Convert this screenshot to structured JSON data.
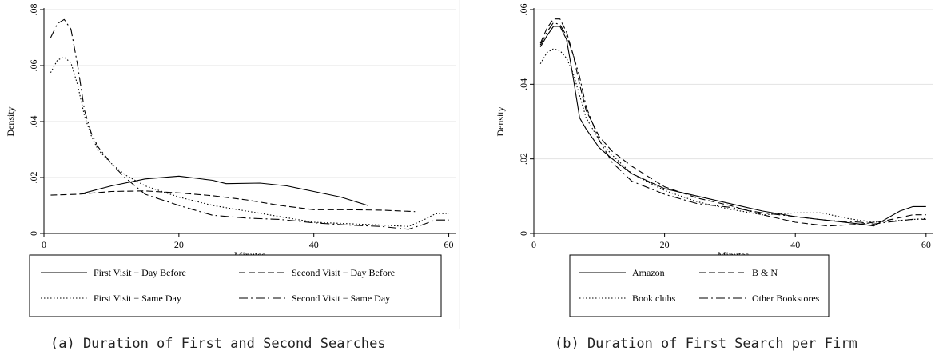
{
  "chart_data": [
    {
      "type": "line",
      "title": "",
      "xlabel": "Minutes",
      "ylabel": "Density",
      "xlim": [
        0,
        61
      ],
      "ylim": [
        0,
        0.08
      ],
      "xticks": [
        0,
        20,
        40,
        60
      ],
      "yticks": [
        0,
        0.02,
        0.04,
        0.06,
        0.08
      ],
      "xtick_labels": [
        "0",
        "20",
        "40",
        "60"
      ],
      "ytick_labels": [
        "0",
        ".02",
        ".04",
        ".06",
        ".08"
      ],
      "grid": true,
      "legend_placement": "bottom",
      "series": [
        {
          "name": "First Visit − Day Before",
          "dash": "solid",
          "points": [
            [
              6,
              0.0145
            ],
            [
              10,
              0.017
            ],
            [
              15,
              0.0195
            ],
            [
              20,
              0.0205
            ],
            [
              25,
              0.019
            ],
            [
              27,
              0.0178
            ],
            [
              32,
              0.018
            ],
            [
              36,
              0.017
            ],
            [
              40,
              0.015
            ],
            [
              44,
              0.013
            ],
            [
              48,
              0.01
            ]
          ]
        },
        {
          "name": "Second Visit − Day Before",
          "dash": "dashed",
          "points": [
            [
              1,
              0.0137
            ],
            [
              5,
              0.014
            ],
            [
              10,
              0.015
            ],
            [
              15,
              0.0152
            ],
            [
              20,
              0.0145
            ],
            [
              25,
              0.0135
            ],
            [
              30,
              0.012
            ],
            [
              35,
              0.01
            ],
            [
              40,
              0.0085
            ],
            [
              45,
              0.0085
            ],
            [
              50,
              0.0083
            ],
            [
              55,
              0.0078
            ]
          ]
        },
        {
          "name": "First Visit − Same Day",
          "dash": "dotted",
          "points": [
            [
              1,
              0.0575
            ],
            [
              2,
              0.062
            ],
            [
              3,
              0.063
            ],
            [
              4,
              0.061
            ],
            [
              5,
              0.053
            ],
            [
              6,
              0.042
            ],
            [
              7,
              0.035
            ],
            [
              8,
              0.03
            ],
            [
              10,
              0.025
            ],
            [
              12,
              0.021
            ],
            [
              15,
              0.017
            ],
            [
              20,
              0.013
            ],
            [
              25,
              0.01
            ],
            [
              30,
              0.008
            ],
            [
              35,
              0.006
            ],
            [
              40,
              0.004
            ],
            [
              45,
              0.0035
            ],
            [
              50,
              0.003
            ],
            [
              54,
              0.0025
            ],
            [
              56,
              0.0045
            ],
            [
              58,
              0.007
            ],
            [
              60,
              0.0072
            ]
          ]
        },
        {
          "name": "Second Visit − Same Day",
          "dash": "dashdot",
          "points": [
            [
              1,
              0.07
            ],
            [
              2,
              0.075
            ],
            [
              3,
              0.0765
            ],
            [
              4,
              0.073
            ],
            [
              5,
              0.06
            ],
            [
              6,
              0.044
            ],
            [
              7,
              0.036
            ],
            [
              8,
              0.031
            ],
            [
              10,
              0.025
            ],
            [
              12,
              0.02
            ],
            [
              15,
              0.014
            ],
            [
              20,
              0.01
            ],
            [
              25,
              0.0065
            ],
            [
              30,
              0.0055
            ],
            [
              35,
              0.005
            ],
            [
              40,
              0.0038
            ],
            [
              45,
              0.003
            ],
            [
              50,
              0.0025
            ],
            [
              54,
              0.0015
            ],
            [
              56,
              0.003
            ],
            [
              58,
              0.0048
            ],
            [
              60,
              0.0048
            ]
          ]
        }
      ]
    },
    {
      "type": "line",
      "title": "",
      "xlabel": "Minutes",
      "ylabel": "Density",
      "xlim": [
        0,
        61
      ],
      "ylim": [
        0,
        0.06
      ],
      "xticks": [
        0,
        20,
        40,
        60
      ],
      "yticks": [
        0,
        0.02,
        0.04,
        0.06
      ],
      "xtick_labels": [
        "0",
        "20",
        "40",
        "60"
      ],
      "ytick_labels": [
        "0",
        ".02",
        ".04",
        ".06"
      ],
      "grid": true,
      "legend_placement": "bottom",
      "series": [
        {
          "name": "Amazon",
          "dash": "solid",
          "points": [
            [
              1,
              0.05
            ],
            [
              2,
              0.053
            ],
            [
              3,
              0.0555
            ],
            [
              4,
              0.0555
            ],
            [
              5,
              0.052
            ],
            [
              6,
              0.042
            ],
            [
              7,
              0.031
            ],
            [
              8,
              0.028
            ],
            [
              10,
              0.023
            ],
            [
              12,
              0.02
            ],
            [
              15,
              0.016
            ],
            [
              20,
              0.012
            ],
            [
              25,
              0.01
            ],
            [
              30,
              0.008
            ],
            [
              35,
              0.006
            ],
            [
              40,
              0.0045
            ],
            [
              45,
              0.0035
            ],
            [
              50,
              0.0025
            ],
            [
              52,
              0.002
            ],
            [
              54,
              0.004
            ],
            [
              56,
              0.006
            ],
            [
              58,
              0.0072
            ],
            [
              60,
              0.0072
            ]
          ]
        },
        {
          "name": "B & N",
          "dash": "dashed",
          "points": [
            [
              1,
              0.051
            ],
            [
              2,
              0.055
            ],
            [
              3,
              0.0575
            ],
            [
              4,
              0.0575
            ],
            [
              5,
              0.054
            ],
            [
              6,
              0.048
            ],
            [
              7,
              0.04
            ],
            [
              8,
              0.033
            ],
            [
              10,
              0.026
            ],
            [
              12,
              0.022
            ],
            [
              15,
              0.018
            ],
            [
              20,
              0.0125
            ],
            [
              25,
              0.0095
            ],
            [
              30,
              0.0075
            ],
            [
              35,
              0.005
            ],
            [
              40,
              0.003
            ],
            [
              45,
              0.002
            ],
            [
              50,
              0.0025
            ],
            [
              54,
              0.0035
            ],
            [
              58,
              0.005
            ],
            [
              60,
              0.005
            ]
          ]
        },
        {
          "name": "Book clubs",
          "dash": "dotted",
          "points": [
            [
              1,
              0.0455
            ],
            [
              2,
              0.0485
            ],
            [
              3,
              0.0495
            ],
            [
              4,
              0.049
            ],
            [
              5,
              0.047
            ],
            [
              6,
              0.043
            ],
            [
              7,
              0.037
            ],
            [
              8,
              0.031
            ],
            [
              10,
              0.025
            ],
            [
              12,
              0.021
            ],
            [
              15,
              0.016
            ],
            [
              20,
              0.0115
            ],
            [
              25,
              0.0085
            ],
            [
              30,
              0.0065
            ],
            [
              35,
              0.005
            ],
            [
              40,
              0.0055
            ],
            [
              44,
              0.0055
            ],
            [
              48,
              0.004
            ],
            [
              52,
              0.003
            ],
            [
              56,
              0.0035
            ],
            [
              60,
              0.004
            ]
          ]
        },
        {
          "name": "Other Bookstores",
          "dash": "dashdot",
          "points": [
            [
              1,
              0.0505
            ],
            [
              2,
              0.054
            ],
            [
              3,
              0.0565
            ],
            [
              4,
              0.056
            ],
            [
              5,
              0.053
            ],
            [
              6,
              0.048
            ],
            [
              7,
              0.042
            ],
            [
              8,
              0.034
            ],
            [
              10,
              0.025
            ],
            [
              12,
              0.019
            ],
            [
              15,
              0.014
            ],
            [
              20,
              0.0105
            ],
            [
              25,
              0.008
            ],
            [
              30,
              0.007
            ],
            [
              35,
              0.0055
            ],
            [
              40,
              0.0045
            ],
            [
              45,
              0.0035
            ],
            [
              50,
              0.003
            ],
            [
              52,
              0.0025
            ],
            [
              54,
              0.003
            ],
            [
              58,
              0.0038
            ],
            [
              60,
              0.0038
            ]
          ]
        }
      ]
    }
  ],
  "captions": {
    "a": "(a) Duration of First and Second Searches",
    "b": "(b) Duration of First Search per Firm"
  }
}
